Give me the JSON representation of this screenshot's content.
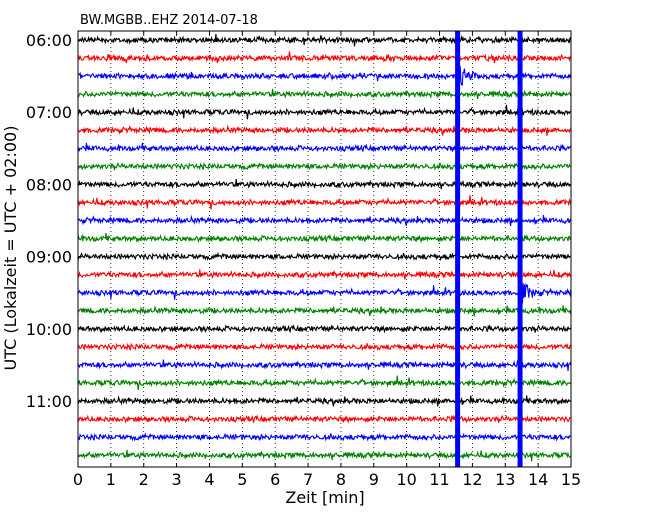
{
  "chart_data": {
    "type": "line",
    "title": "BW.MGBB..EHZ 2014-07-18",
    "xlabel": "Zeit  [min]",
    "ylabel": "UTC (Lokalzeit = UTC + 02:00)",
    "xlim": [
      0,
      15
    ],
    "x_ticks": [
      "0",
      "1",
      "2",
      "3",
      "4",
      "5",
      "6",
      "7",
      "8",
      "9",
      "10",
      "11",
      "12",
      "13",
      "14",
      "15"
    ],
    "y_tick_labels": [
      "06:00",
      "07:00",
      "08:00",
      "09:00",
      "10:00",
      "11:00"
    ],
    "traces_per_hour": 4,
    "trace_start": "06:00",
    "trace_count": 24,
    "trace_colors": [
      "#000000",
      "#ff0000",
      "#0000ff",
      "#008000"
    ],
    "vertical_grid": "dotted",
    "series": [
      {
        "start": "06:00",
        "color": "#000000"
      },
      {
        "start": "06:15",
        "color": "#ff0000"
      },
      {
        "start": "06:30",
        "color": "#0000ff",
        "event_minute": 11.6
      },
      {
        "start": "06:45",
        "color": "#008000"
      },
      {
        "start": "07:00",
        "color": "#000000"
      },
      {
        "start": "07:15",
        "color": "#ff0000"
      },
      {
        "start": "07:30",
        "color": "#0000ff"
      },
      {
        "start": "07:45",
        "color": "#008000"
      },
      {
        "start": "08:00",
        "color": "#000000"
      },
      {
        "start": "08:15",
        "color": "#ff0000"
      },
      {
        "start": "08:30",
        "color": "#0000ff"
      },
      {
        "start": "08:45",
        "color": "#008000"
      },
      {
        "start": "09:00",
        "color": "#000000"
      },
      {
        "start": "09:15",
        "color": "#ff0000"
      },
      {
        "start": "09:30",
        "color": "#0000ff",
        "event_minute": 13.5
      },
      {
        "start": "09:45",
        "color": "#008000"
      },
      {
        "start": "10:00",
        "color": "#000000"
      },
      {
        "start": "10:15",
        "color": "#ff0000"
      },
      {
        "start": "10:30",
        "color": "#0000ff"
      },
      {
        "start": "10:45",
        "color": "#008000"
      },
      {
        "start": "11:00",
        "color": "#000000"
      },
      {
        "start": "11:15",
        "color": "#ff0000"
      },
      {
        "start": "11:30",
        "color": "#0000ff"
      },
      {
        "start": "11:45",
        "color": "#008000"
      }
    ],
    "spikes": [
      {
        "x_minute": 11.55,
        "from": "06:00",
        "to": "11:45",
        "color": "#0000ff"
      },
      {
        "x_minute": 13.45,
        "from": "06:00",
        "to": "11:45",
        "color": "#0000ff"
      }
    ]
  }
}
